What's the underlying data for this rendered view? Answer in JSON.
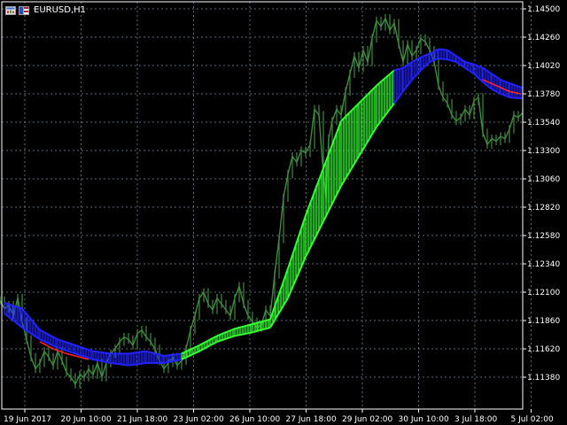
{
  "window": {
    "title": "EURUSD,H1",
    "icons": [
      "chart-window-icon",
      "eu-flag-icon"
    ]
  },
  "colors": {
    "background": "#000000",
    "grid": "#5a6b7a",
    "axis": "#ffffff",
    "price_bars": "#3f8a3f",
    "band_up": "#33ff33",
    "band_down": "#2222ff",
    "line_red": "#ff2020"
  },
  "chart_data": {
    "type": "line",
    "symbol": "EURUSD",
    "timeframe": "H1",
    "grid": true,
    "y_ticks": [
      "1.14500",
      "1.14260",
      "1.14020",
      "1.13780",
      "1.13540",
      "1.13300",
      "1.13060",
      "1.12820",
      "1.12580",
      "1.12340",
      "1.12100",
      "1.11860",
      "1.11620",
      "1.11380"
    ],
    "x_ticks": [
      "19 Jun 2017",
      "20 Jun 10:00",
      "21 Jun 18:00",
      "23 Jun 02:00",
      "26 Jun 10:00",
      "27 Jun 18:00",
      "29 Jun 02:00",
      "30 Jun 10:00",
      "3 Jul 18:00",
      "5 Jul 02:00"
    ],
    "ylim": [
      1.1129,
      1.145
    ],
    "price_close": [
      [
        0,
        1.1203
      ],
      [
        5,
        1.1196
      ],
      [
        10,
        1.1199
      ],
      [
        15,
        1.119
      ],
      [
        20,
        1.1205
      ],
      [
        25,
        1.1185
      ],
      [
        30,
        1.117
      ],
      [
        35,
        1.1155
      ],
      [
        40,
        1.1145
      ],
      [
        45,
        1.115
      ],
      [
        50,
        1.116
      ],
      [
        55,
        1.1155
      ],
      [
        60,
        1.1148
      ],
      [
        65,
        1.116
      ],
      [
        70,
        1.1152
      ],
      [
        75,
        1.1142
      ],
      [
        80,
        1.1138
      ],
      [
        85,
        1.1132
      ],
      [
        90,
        1.114
      ],
      [
        95,
        1.1138
      ],
      [
        100,
        1.1145
      ],
      [
        105,
        1.114
      ],
      [
        110,
        1.115
      ],
      [
        115,
        1.1138
      ],
      [
        120,
        1.115
      ],
      [
        125,
        1.1158
      ],
      [
        130,
        1.1162
      ],
      [
        135,
        1.1168
      ],
      [
        140,
        1.1172
      ],
      [
        145,
        1.117
      ],
      [
        150,
        1.1165
      ],
      [
        155,
        1.1175
      ],
      [
        160,
        1.1178
      ],
      [
        165,
        1.1172
      ],
      [
        170,
        1.1168
      ],
      [
        175,
        1.1162
      ],
      [
        180,
        1.1152
      ],
      [
        185,
        1.1145
      ],
      [
        190,
        1.115
      ],
      [
        195,
        1.1155
      ],
      [
        200,
        1.1148
      ],
      [
        205,
        1.1152
      ],
      [
        210,
        1.1162
      ],
      [
        215,
        1.1178
      ],
      [
        220,
        1.119
      ],
      [
        225,
        1.1205
      ],
      [
        230,
        1.121
      ],
      [
        235,
        1.12
      ],
      [
        240,
        1.1195
      ],
      [
        245,
        1.1205
      ],
      [
        250,
        1.12
      ],
      [
        255,
        1.1195
      ],
      [
        260,
        1.119
      ],
      [
        265,
        1.1205
      ],
      [
        270,
        1.1215
      ],
      [
        275,
        1.12
      ],
      [
        280,
        1.119
      ],
      [
        285,
        1.1185
      ],
      [
        290,
        1.118
      ],
      [
        295,
        1.1182
      ],
      [
        300,
        1.1195
      ],
      [
        305,
        1.119
      ],
      [
        310,
        1.1225
      ],
      [
        315,
        1.1255
      ],
      [
        320,
        1.129
      ],
      [
        325,
        1.131
      ],
      [
        330,
        1.1325
      ],
      [
        335,
        1.132
      ],
      [
        340,
        1.133
      ],
      [
        345,
        1.1328
      ],
      [
        350,
        1.1335
      ],
      [
        355,
        1.1365
      ],
      [
        360,
        1.136
      ],
      [
        365,
        1.131
      ],
      [
        368,
        1.129
      ],
      [
        371,
        1.134
      ],
      [
        375,
        1.1355
      ],
      [
        380,
        1.1365
      ],
      [
        385,
        1.136
      ],
      [
        390,
        1.138
      ],
      [
        395,
        1.1395
      ],
      [
        400,
        1.141
      ],
      [
        405,
        1.14
      ],
      [
        410,
        1.1415
      ],
      [
        415,
        1.1405
      ],
      [
        420,
        1.1425
      ],
      [
        425,
        1.144
      ],
      [
        430,
        1.1435
      ],
      [
        435,
        1.1442
      ],
      [
        440,
        1.1432
      ],
      [
        445,
        1.1438
      ],
      [
        450,
        1.142
      ],
      [
        455,
        1.1405
      ],
      [
        460,
        1.142
      ],
      [
        465,
        1.141
      ],
      [
        470,
        1.1415
      ],
      [
        475,
        1.1425
      ],
      [
        480,
        1.1422
      ],
      [
        485,
        1.1415
      ],
      [
        490,
        1.1405
      ],
      [
        495,
        1.1385
      ],
      [
        500,
        1.1375
      ],
      [
        505,
        1.137
      ],
      [
        510,
        1.136
      ],
      [
        515,
        1.1355
      ],
      [
        520,
        1.1358
      ],
      [
        525,
        1.1365
      ],
      [
        530,
        1.136
      ],
      [
        535,
        1.1372
      ],
      [
        540,
        1.1375
      ],
      [
        545,
        1.1345
      ],
      [
        550,
        1.1335
      ],
      [
        555,
        1.134
      ],
      [
        560,
        1.1338
      ],
      [
        565,
        1.1342
      ],
      [
        570,
        1.134
      ],
      [
        575,
        1.1348
      ],
      [
        580,
        1.136
      ],
      [
        585,
        1.1358
      ],
      [
        590,
        1.1362
      ]
    ],
    "band_top": [
      [
        5,
        1.1201
      ],
      [
        25,
        1.1196
      ],
      [
        45,
        1.1178
      ],
      [
        65,
        1.117
      ],
      [
        85,
        1.1165
      ],
      [
        105,
        1.116
      ],
      [
        125,
        1.1158
      ],
      [
        145,
        1.1158
      ],
      [
        165,
        1.116
      ],
      [
        185,
        1.1156
      ],
      [
        205,
        1.1158
      ],
      [
        225,
        1.1165
      ],
      [
        245,
        1.1173
      ],
      [
        265,
        1.1179
      ],
      [
        285,
        1.1183
      ],
      [
        305,
        1.1187
      ],
      [
        325,
        1.123
      ],
      [
        345,
        1.1275
      ],
      [
        365,
        1.1315
      ],
      [
        385,
        1.1355
      ],
      [
        405,
        1.137
      ],
      [
        425,
        1.1385
      ],
      [
        445,
        1.1398
      ],
      [
        455,
        1.14
      ],
      [
        465,
        1.1405
      ],
      [
        475,
        1.1409
      ],
      [
        485,
        1.1412
      ],
      [
        495,
        1.1416
      ],
      [
        505,
        1.1415
      ],
      [
        515,
        1.141
      ],
      [
        525,
        1.1405
      ],
      [
        535,
        1.1403
      ],
      [
        545,
        1.14
      ],
      [
        555,
        1.1395
      ],
      [
        565,
        1.139
      ],
      [
        575,
        1.1387
      ],
      [
        590,
        1.1383
      ]
    ],
    "band_bottom": [
      [
        5,
        1.1192
      ],
      [
        25,
        1.118
      ],
      [
        45,
        1.117
      ],
      [
        65,
        1.1163
      ],
      [
        85,
        1.1158
      ],
      [
        105,
        1.1153
      ],
      [
        125,
        1.115
      ],
      [
        145,
        1.1148
      ],
      [
        165,
        1.115
      ],
      [
        185,
        1.115
      ],
      [
        205,
        1.1153
      ],
      [
        225,
        1.116
      ],
      [
        245,
        1.1168
      ],
      [
        265,
        1.1173
      ],
      [
        285,
        1.1176
      ],
      [
        305,
        1.118
      ],
      [
        325,
        1.1205
      ],
      [
        345,
        1.124
      ],
      [
        365,
        1.127
      ],
      [
        385,
        1.13
      ],
      [
        405,
        1.1325
      ],
      [
        425,
        1.135
      ],
      [
        445,
        1.137
      ],
      [
        455,
        1.138
      ],
      [
        465,
        1.139
      ],
      [
        475,
        1.1398
      ],
      [
        485,
        1.1405
      ],
      [
        495,
        1.1408
      ],
      [
        505,
        1.1407
      ],
      [
        515,
        1.1405
      ],
      [
        525,
        1.14
      ],
      [
        535,
        1.1395
      ],
      [
        545,
        1.1388
      ],
      [
        555,
        1.1382
      ],
      [
        565,
        1.1378
      ],
      [
        575,
        1.1375
      ],
      [
        590,
        1.1374
      ]
    ],
    "band_colors": [
      "down",
      "down",
      "down",
      "down",
      "down",
      "down",
      "down",
      "down",
      "down",
      "down",
      "up",
      "up",
      "up",
      "up",
      "up",
      "up",
      "up",
      "up",
      "up",
      "up",
      "up",
      "up",
      "down",
      "down",
      "down",
      "down",
      "down",
      "down",
      "down",
      "down",
      "down",
      "down",
      "down",
      "down",
      "down",
      "down"
    ],
    "red_segments": [
      [
        [
          45,
          1.1168
        ],
        [
          60,
          1.1162
        ],
        [
          75,
          1.1158
        ],
        [
          90,
          1.1155
        ],
        [
          100,
          1.1153
        ]
      ],
      [
        [
          545,
          1.139
        ],
        [
          560,
          1.1385
        ],
        [
          575,
          1.138
        ],
        [
          588,
          1.1378
        ]
      ]
    ]
  }
}
